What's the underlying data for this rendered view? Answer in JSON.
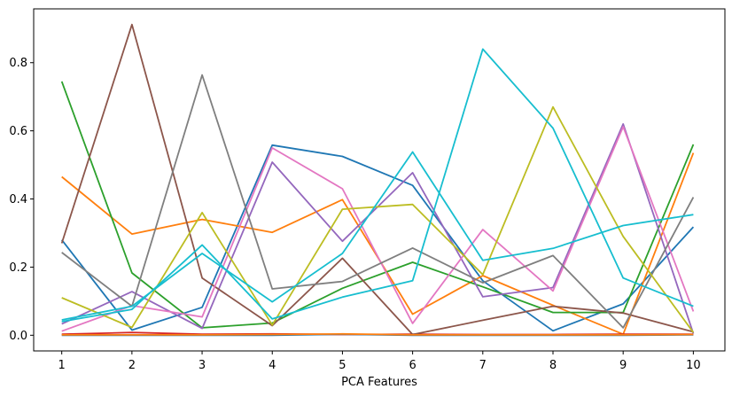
{
  "chart_data": {
    "type": "line",
    "title": "",
    "xlabel": "PCA Features",
    "ylabel": "",
    "x": [
      1,
      2,
      3,
      4,
      5,
      6,
      7,
      8,
      9,
      10
    ],
    "xlim": [
      0.6,
      10.45
    ],
    "ylim": [
      -0.046,
      0.958
    ],
    "xticks": [
      1,
      2,
      3,
      4,
      5,
      6,
      7,
      8,
      9,
      10
    ],
    "yticks": [
      0.0,
      0.2,
      0.4,
      0.6,
      0.8
    ],
    "ytick_labels": [
      "0.0",
      "0.2",
      "0.4",
      "0.6",
      "0.8"
    ],
    "grid": false,
    "legend": "none",
    "series": [
      {
        "color": "#1f77b4",
        "values": [
          0.28,
          0.015,
          0.082,
          0.558,
          0.525,
          0.44,
          0.16,
          0.013,
          0.092,
          0.318
        ]
      },
      {
        "color": "#ff7f0e",
        "values": [
          0.465,
          0.297,
          0.34,
          0.302,
          0.398,
          0.062,
          0.175,
          0.088,
          0.003,
          0.535
        ]
      },
      {
        "color": "#2ca02c",
        "values": [
          0.745,
          0.183,
          0.022,
          0.036,
          0.138,
          0.214,
          0.142,
          0.067,
          0.067,
          0.56
        ]
      },
      {
        "color": "#d62728",
        "values": [
          0.003,
          0.008,
          0.003,
          0.004,
          0.002,
          0.003,
          0.002,
          0.002,
          0.003,
          0.003
        ]
      },
      {
        "color": "#9467bd",
        "values": [
          0.033,
          0.128,
          0.02,
          0.508,
          0.276,
          0.477,
          0.113,
          0.14,
          0.62,
          0.005
        ]
      },
      {
        "color": "#8c564b",
        "values": [
          0.27,
          0.912,
          0.168,
          0.028,
          0.226,
          0.002,
          0.044,
          0.085,
          0.065,
          0.01
        ]
      },
      {
        "color": "#e377c2",
        "values": [
          0.012,
          0.087,
          0.054,
          0.55,
          0.43,
          0.035,
          0.31,
          0.13,
          0.612,
          0.07
        ]
      },
      {
        "color": "#7f7f7f",
        "values": [
          0.243,
          0.085,
          0.764,
          0.136,
          0.158,
          0.256,
          0.154,
          0.234,
          0.022,
          0.405
        ]
      },
      {
        "color": "#bcbd22",
        "values": [
          0.11,
          0.023,
          0.36,
          0.03,
          0.37,
          0.384,
          0.178,
          0.67,
          0.29,
          0.008
        ]
      },
      {
        "color": "#17becf",
        "values": [
          0.04,
          0.076,
          0.265,
          0.048,
          0.112,
          0.16,
          0.84,
          0.608,
          0.168,
          0.085
        ]
      },
      {
        "color": "#1f77b4",
        "values": [
          0.0,
          0.0,
          0.0,
          0.0,
          0.003,
          0.0,
          0.0,
          0.0,
          0.0,
          0.001
        ]
      },
      {
        "color": "#ff7f0e",
        "values": [
          0.001,
          0.001,
          0.001,
          0.002,
          0.004,
          0.001,
          0.001,
          0.001,
          0.001,
          0.002
        ]
      },
      {
        "color": "#17becf",
        "values": [
          0.045,
          0.085,
          0.24,
          0.098,
          0.24,
          0.538,
          0.22,
          0.255,
          0.322,
          0.354
        ]
      }
    ]
  }
}
